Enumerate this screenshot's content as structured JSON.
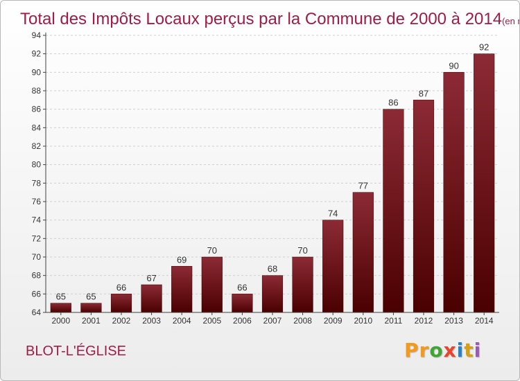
{
  "page": {
    "commune": "BLOT-L'ÉGLISE",
    "logo_letters": [
      "P",
      "r",
      "o",
      "x",
      "i",
      "t",
      "i"
    ],
    "logo_colors": [
      "#f39a1d",
      "#f39a1d",
      "#3fa535",
      "#e8452c",
      "#2b7fc4",
      "#d4a017",
      "#9b59b6"
    ]
  },
  "chart_data": {
    "type": "bar",
    "title": "Total des Impôts Locaux perçus par la Commune de 2000 à 2014",
    "unit_label": "(en milliers d'€)",
    "categories": [
      "2000",
      "2001",
      "2002",
      "2003",
      "2004",
      "2005",
      "2006",
      "2007",
      "2008",
      "2009",
      "2010",
      "2011",
      "2012",
      "2013",
      "2014"
    ],
    "values": [
      65,
      65,
      66,
      67,
      69,
      70,
      66,
      68,
      70,
      74,
      77,
      86,
      87,
      90,
      92
    ],
    "ylim": [
      64,
      94
    ],
    "yticks": [
      64,
      66,
      68,
      70,
      72,
      74,
      76,
      78,
      80,
      82,
      84,
      86,
      88,
      90,
      92,
      94
    ],
    "grid": true,
    "colors": {
      "bar_top": "#8c2a35",
      "bar_bottom": "#4a0000",
      "title": "#a01c46",
      "grid": "#d0d0d0",
      "axis": "#404040"
    }
  }
}
